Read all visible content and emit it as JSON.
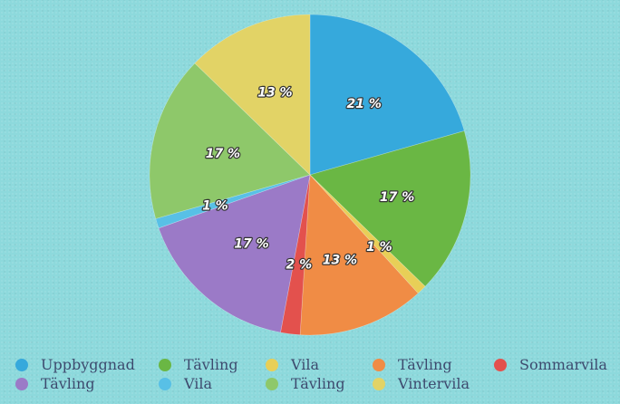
{
  "chart_data": {
    "type": "pie",
    "title": "",
    "start_angle_deg": 0,
    "direction": "clockwise",
    "legend_position": "bottom",
    "series": [
      {
        "name": "Uppbyggnad",
        "value": 21,
        "label": "21 %",
        "color": "#36a9dc"
      },
      {
        "name": "Tävling",
        "value": 17,
        "label": "17 %",
        "color": "#6ab744"
      },
      {
        "name": "Vila",
        "value": 1,
        "label": "1 %",
        "color": "#e8cf57"
      },
      {
        "name": "Tävling",
        "value": 13,
        "label": "13 %",
        "color": "#f08c45"
      },
      {
        "name": "Sommarvila",
        "value": 2,
        "label": "2 %",
        "color": "#e3514d"
      },
      {
        "name": "Tävling",
        "value": 17,
        "label": "17 %",
        "color": "#9b7ac7"
      },
      {
        "name": "Vila",
        "value": 1,
        "label": "1 %",
        "color": "#58c0e6"
      },
      {
        "name": "Tävling",
        "value": 17,
        "label": "17 %",
        "color": "#8ec86a"
      },
      {
        "name": "Vintervila",
        "value": 13,
        "label": "13 %",
        "color": "#e2d366"
      }
    ]
  }
}
